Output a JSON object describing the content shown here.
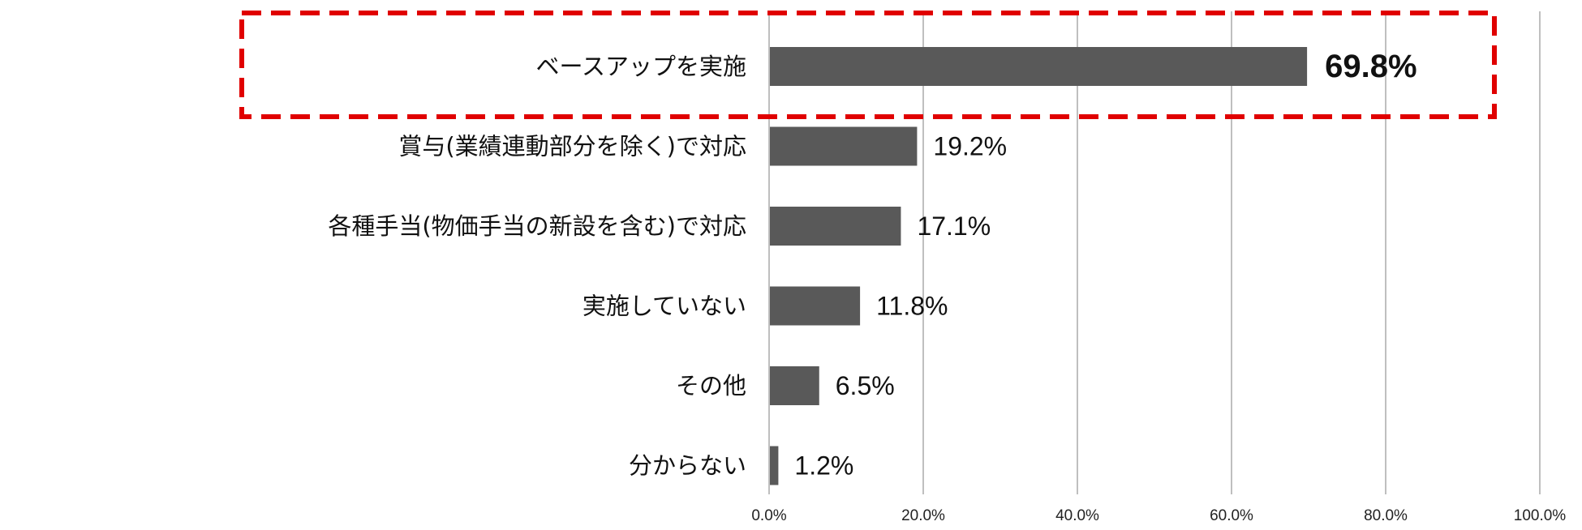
{
  "chart_data": {
    "type": "bar",
    "orientation": "horizontal",
    "categories": [
      "ベースアップを実施",
      "賞与(業績連動部分を除く)で対応",
      "各種手当(物価手当の新設を含む)で対応",
      "実施していない",
      "その他",
      "分からない"
    ],
    "values": [
      69.8,
      19.2,
      17.1,
      11.8,
      6.5,
      1.2
    ],
    "value_labels": [
      "69.8%",
      "19.2%",
      "17.1%",
      "11.8%",
      "6.5%",
      "1.2%"
    ],
    "xlim": [
      0,
      100
    ],
    "xticks": [
      0,
      20,
      40,
      60,
      80,
      100
    ],
    "xtick_labels": [
      "0.0%",
      "20.0%",
      "40.0%",
      "60.0%",
      "80.0%",
      "100.0%"
    ],
    "title": "",
    "xlabel": "",
    "ylabel": "",
    "grid": "vertical",
    "highlight_index": 0,
    "colors": {
      "bar": "#595959",
      "grid": "#bfbfbf",
      "highlight": "#e00000",
      "text": "#111111"
    }
  }
}
